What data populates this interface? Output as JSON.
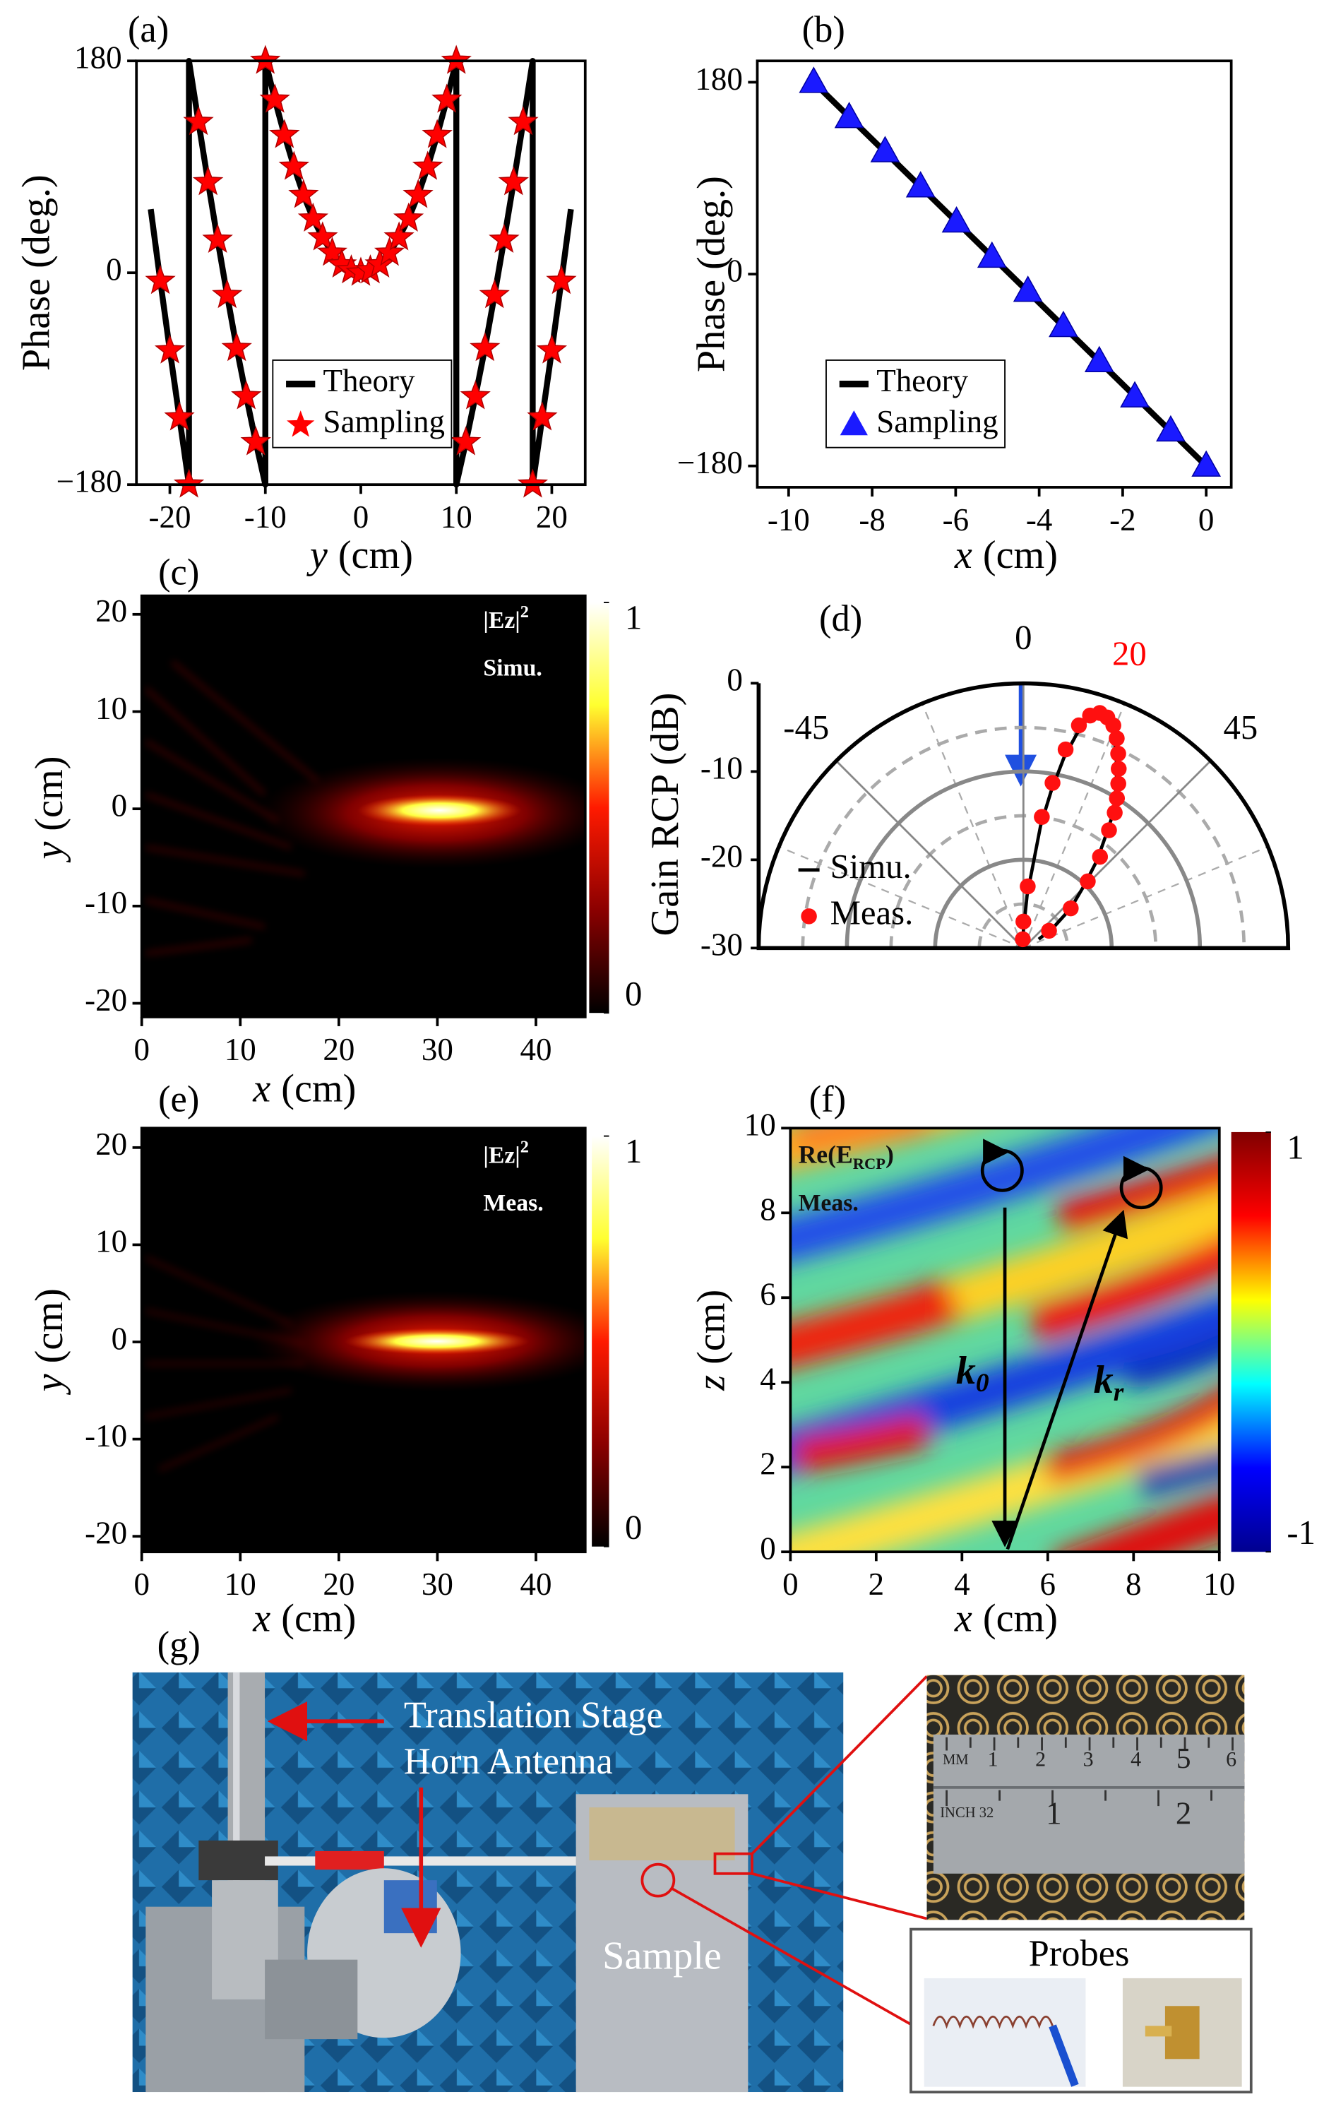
{
  "chart_data": [
    {
      "type": "line",
      "panel_label": "(a)",
      "xlabel": [
        "y",
        "(cm)"
      ],
      "ylabel": "Phase (deg.)",
      "xlim": [
        -23.5,
        23.5
      ],
      "xticks": [
        -20,
        -10,
        0,
        10,
        20
      ],
      "ylim": [
        -180,
        180
      ],
      "yticks": [
        {
          "value": -180,
          "label": "−180"
        },
        0,
        180
      ],
      "legend": "lower center",
      "series": [
        {
          "name": "Theory",
          "color": "#000000",
          "marker": "none",
          "x": [
            -22,
            -21,
            -20,
            -19,
            -18,
            -18,
            -17,
            -16,
            -15,
            -14,
            -13,
            -12,
            -11,
            -10,
            -10,
            -9,
            -8,
            -7,
            -6,
            -5,
            -4,
            -3,
            -2,
            -1,
            0,
            1,
            2,
            3,
            4,
            5,
            6,
            7,
            8,
            9,
            10,
            10,
            11,
            12,
            13,
            14,
            15,
            16,
            17,
            18,
            18,
            19,
            20,
            21,
            22
          ],
          "values": [
            54,
            -7,
            -66,
            -123,
            -180,
            180,
            128,
            77,
            28,
            -19,
            -64,
            -105,
            -144,
            -180,
            180,
            147,
            117,
            90,
            66,
            46,
            30,
            17,
            7,
            2,
            0,
            2,
            7,
            17,
            30,
            46,
            66,
            90,
            117,
            147,
            180,
            -180,
            -144,
            -105,
            -64,
            -19,
            28,
            77,
            128,
            180,
            -180,
            -123,
            -66,
            -7,
            54
          ]
        },
        {
          "name": "Sampling",
          "color": "#ff0000",
          "marker": "star",
          "x": [
            -21,
            -20,
            -19,
            -18,
            -17,
            -16,
            -15,
            -14,
            -13,
            -12,
            -11,
            -10,
            -9,
            -8,
            -7,
            -6,
            -5,
            -4,
            -3,
            -2,
            -1,
            0,
            1,
            2,
            3,
            4,
            5,
            6,
            7,
            8,
            9,
            10,
            11,
            12,
            13,
            14,
            15,
            16,
            17,
            18,
            19,
            20,
            21
          ],
          "values": [
            -7,
            -66,
            -123,
            -180,
            128,
            77,
            28,
            -19,
            -64,
            -105,
            -144,
            180,
            147,
            117,
            90,
            66,
            46,
            30,
            17,
            7,
            2,
            0,
            2,
            7,
            17,
            30,
            46,
            66,
            90,
            117,
            147,
            180,
            -144,
            -105,
            -64,
            -19,
            28,
            77,
            128,
            -180,
            -123,
            -66,
            -7
          ]
        }
      ]
    },
    {
      "type": "line",
      "panel_label": "(b)",
      "xlabel": [
        "x",
        "(cm)"
      ],
      "ylabel": "Phase (deg.)",
      "xlim": [
        -10.75,
        0.6
      ],
      "xticks": [
        -10,
        -8,
        -6,
        -4,
        -2,
        0
      ],
      "ylim": [
        -200,
        200
      ],
      "yticks": [
        {
          "value": -180,
          "label": "−180"
        },
        0,
        180
      ],
      "legend": "lower left",
      "series": [
        {
          "name": "Theory",
          "color": "#000000",
          "marker": "none",
          "x": [
            -9.4,
            0
          ],
          "values": [
            180,
            -180
          ]
        },
        {
          "name": "Sampling",
          "color": "#1a1aff",
          "marker": "triangle",
          "x": [
            -9.4,
            -8.55,
            -7.69,
            -6.84,
            -5.98,
            -5.13,
            -4.27,
            -3.42,
            -2.56,
            -1.71,
            -0.85,
            0
          ],
          "values": [
            180,
            147,
            115,
            82,
            49,
            16,
            -16,
            -49,
            -82,
            -115,
            -147,
            -180
          ]
        }
      ]
    },
    {
      "type": "heatmap",
      "panel_label": "(c)",
      "xlabel": [
        "x",
        "(cm)"
      ],
      "ylabel": [
        "y",
        "(cm)"
      ],
      "xlim": [
        0,
        45
      ],
      "xticks": [
        0,
        10,
        20,
        30,
        40
      ],
      "ylim": [
        -21.4,
        21.9
      ],
      "yticks": [
        -20,
        -10,
        0,
        10,
        20
      ],
      "colormap": [
        "#000000",
        "#8b0000",
        "#ff1a00",
        "#ffff30",
        "#ffffff"
      ],
      "clim": [
        0,
        1
      ],
      "cticks": [
        0,
        1
      ],
      "annotation": [
        "|Ez|",
        "2"
      ],
      "annotation2": "Simu."
    },
    {
      "type": "polar",
      "panel_label": "(d)",
      "ylabel": "Gain RCP (dB)",
      "rlim": [
        -30,
        0
      ],
      "rticks": [
        0,
        -10,
        -20,
        -30
      ],
      "rminor": [
        -5,
        -15,
        -25
      ],
      "thetalim": [
        -90,
        90
      ],
      "thetaticks": [
        -45,
        0,
        45
      ],
      "thetaminor": [
        -67.5,
        -22.5,
        22.5,
        67.5
      ],
      "annotation": {
        "value": 20,
        "color": "#ff0000"
      },
      "legend": "lower left",
      "series": [
        {
          "name": "Simu.",
          "color": "#000000",
          "marker": "none",
          "theta": [
            -6,
            0,
            4,
            8,
            10,
            12,
            14,
            16,
            18,
            20,
            22,
            24,
            26,
            28,
            30,
            32,
            34,
            36,
            40,
            44,
            50,
            56,
            60
          ],
          "values": [
            -30,
            -28,
            -24,
            -16,
            -12,
            -8,
            -5,
            -2.5,
            -1.8,
            -2,
            -3,
            -4.5,
            -6,
            -7.5,
            -9,
            -10.5,
            -12,
            -14,
            -17,
            -20,
            -23,
            -26,
            -28
          ]
        },
        {
          "name": "Meas.",
          "color": "#ff1010",
          "marker": "circle",
          "theta": [
            -4,
            0,
            4,
            8,
            10,
            12,
            14,
            16,
            18,
            20,
            22,
            24,
            26,
            28,
            30,
            32,
            34,
            36,
            40,
            44,
            50,
            56
          ],
          "values": [
            -29,
            -27,
            -23,
            -15,
            -11,
            -7,
            -4,
            -2.6,
            -2,
            -2.2,
            -2.8,
            -4,
            -5.5,
            -7,
            -8.5,
            -10,
            -11.5,
            -13.5,
            -16.5,
            -19.5,
            -23,
            -26.5
          ]
        }
      ]
    },
    {
      "type": "heatmap",
      "panel_label": "(e)",
      "xlabel": [
        "x",
        "(cm)"
      ],
      "ylabel": [
        "y",
        "(cm)"
      ],
      "xlim": [
        0,
        45
      ],
      "xticks": [
        0,
        10,
        20,
        30,
        40
      ],
      "ylim": [
        -21.6,
        22
      ],
      "yticks": [
        -20,
        -10,
        0,
        10,
        20
      ],
      "colormap": [
        "#000000",
        "#8b0000",
        "#ff1a00",
        "#ffff30",
        "#ffffff"
      ],
      "clim": [
        0,
        1
      ],
      "cticks": [
        0,
        1
      ],
      "annotation": [
        "|Ez|",
        "2"
      ],
      "annotation2": "Meas."
    },
    {
      "type": "heatmap",
      "panel_label": "(f)",
      "xlabel": [
        "x",
        "(cm)"
      ],
      "ylabel": [
        "z",
        "(cm)"
      ],
      "xlim": [
        0,
        10
      ],
      "xticks": [
        0,
        2,
        4,
        6,
        8,
        10
      ],
      "ylim": [
        0,
        10
      ],
      "yticks": [
        0,
        2,
        4,
        6,
        8,
        10
      ],
      "colormap": [
        "#00008f",
        "#0000ff",
        "#00ffff",
        "#ffff00",
        "#ff0000",
        "#800000"
      ],
      "clim": [
        -1,
        1
      ],
      "cticks": [
        -1,
        1
      ],
      "annotation": [
        "Re(E",
        "RCP",
        ")"
      ],
      "annotation2": "Meas.",
      "k0": [
        "k",
        "0"
      ],
      "kr": [
        "k",
        "r"
      ]
    }
  ],
  "photo": {
    "panel_label": "(g)",
    "labels": {
      "stage": "Translation Stage",
      "horn": "Horn Antenna",
      "sample": "Sample"
    },
    "inset": {
      "mm": [
        "MM",
        "1",
        "2",
        "3",
        "4",
        "5",
        "6"
      ],
      "inch": [
        "INCH 32",
        "1",
        "2"
      ]
    },
    "probes": "Probes"
  }
}
